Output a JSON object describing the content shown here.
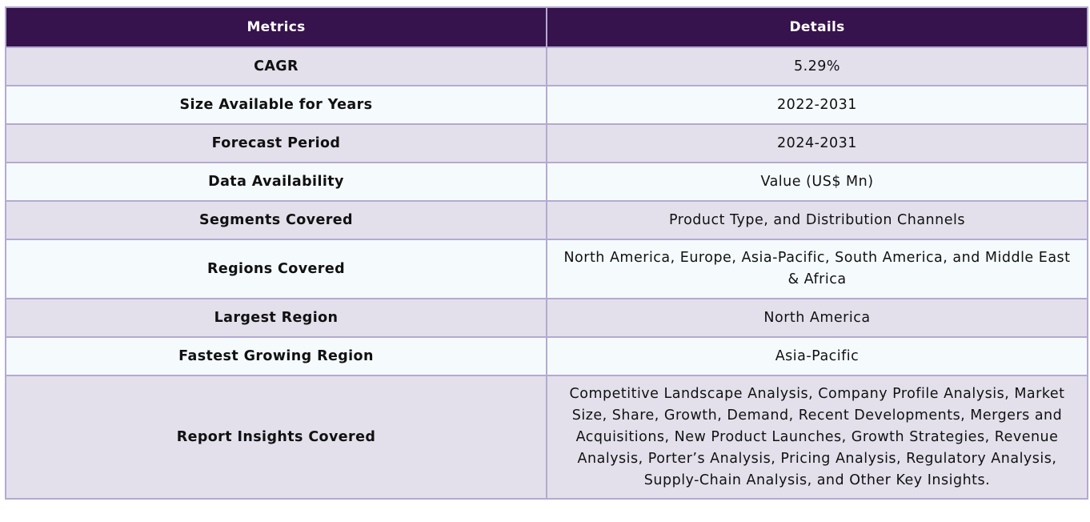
{
  "table": {
    "headers": {
      "metric": "Metrics",
      "detail": "Details"
    },
    "rows": [
      {
        "metric": "CAGR",
        "detail": "5.29%"
      },
      {
        "metric": "Size Available for Years",
        "detail": "2022-2031"
      },
      {
        "metric": "Forecast Period",
        "detail": "2024-2031"
      },
      {
        "metric": "Data Availability",
        "detail": "Value (US$ Mn)"
      },
      {
        "metric": "Segments Covered",
        "detail": "Product Type, and Distribution Channels"
      },
      {
        "metric": "Regions Covered",
        "detail": "North America, Europe, Asia-Pacific, South America, and Middle East & Africa"
      },
      {
        "metric": "Largest Region",
        "detail": "North America"
      },
      {
        "metric": "Fastest Growing Region",
        "detail": "Asia-Pacific"
      },
      {
        "metric": "Report Insights Covered",
        "detail": "Competitive Landscape Analysis, Company Profile Analysis, Market Size, Share, Growth, Demand, Recent Developments, Mergers and Acquisitions, New Product Launches, Growth Strategies, Revenue Analysis, Porter’s Analysis, Pricing Analysis, Regulatory Analysis, Supply-Chain Analysis, and Other Key Insights."
      }
    ]
  },
  "colors": {
    "header_bg": "#37134d",
    "row_odd_bg": "#e3e0ec",
    "row_even_bg": "#f5fafd",
    "border": "#b3aad0"
  }
}
